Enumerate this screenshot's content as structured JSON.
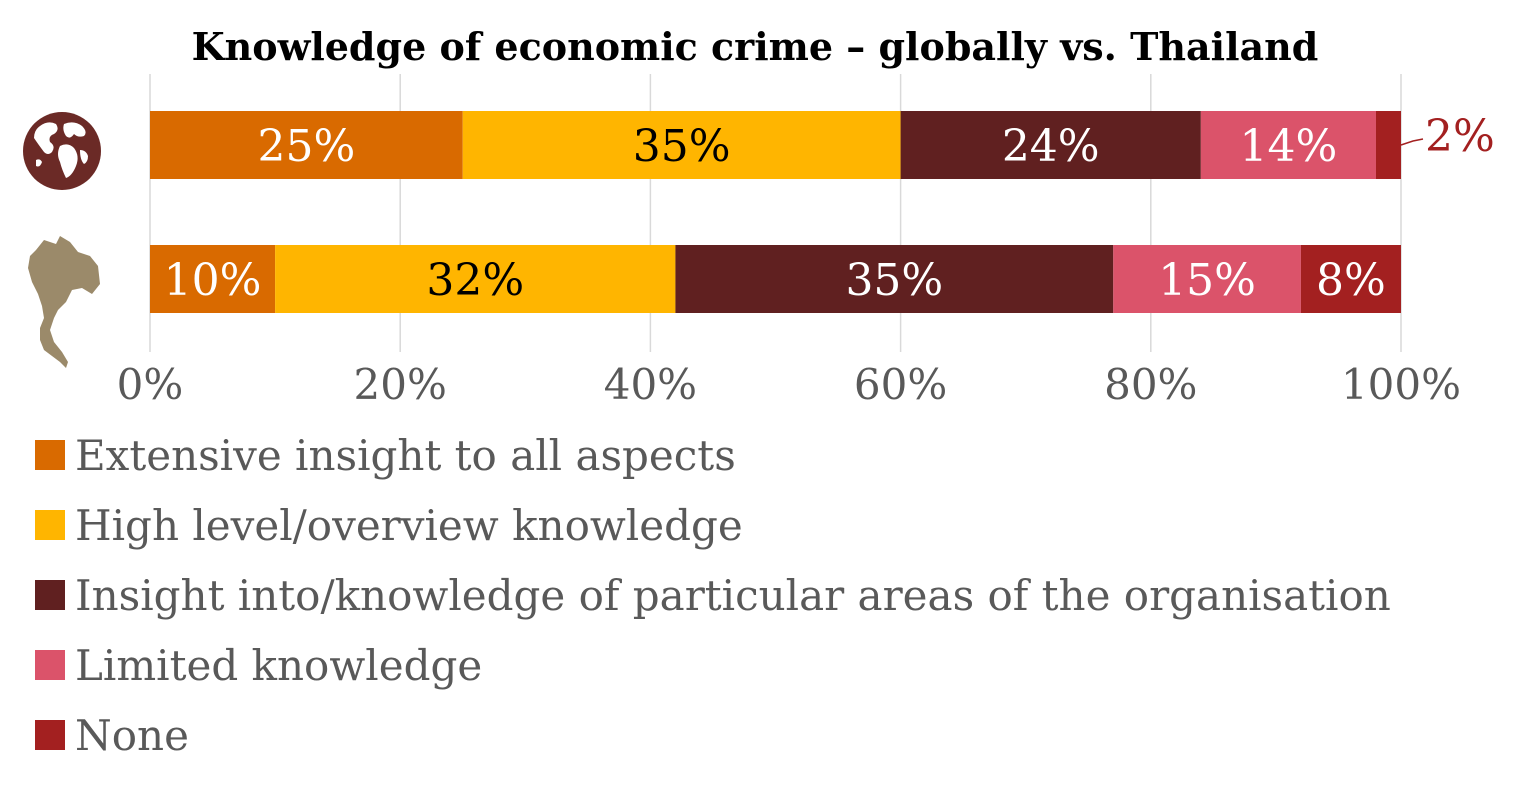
{
  "chart_data": {
    "type": "bar",
    "orientation": "horizontal",
    "stacked": true,
    "title": "Knowledge of economic crime – globally vs. Thailand",
    "rows": [
      {
        "icon": "globe-icon",
        "values": [
          25,
          35,
          24,
          14,
          2
        ]
      },
      {
        "icon": "thailand-map-icon",
        "values": [
          10,
          32,
          35,
          15,
          8
        ]
      }
    ],
    "series": [
      {
        "name": "Extensive insight to all aspects",
        "color": "#D96A00",
        "label_color": "#FFFFFF"
      },
      {
        "name": "High level/overview knowledge",
        "color": "#FFB500",
        "label_color": "#000000"
      },
      {
        "name": "Insight into/knowledge of particular areas of the organisation",
        "color": "#602020",
        "label_color": "#FFFFFF"
      },
      {
        "name": "Limited knowledge",
        "color": "#DB536A",
        "label_color": "#FFFFFF"
      },
      {
        "name": "None",
        "color": "#A32020",
        "label_color": "#FFFFFF"
      }
    ],
    "value_suffix": "%",
    "xlim": [
      0,
      100
    ],
    "xticks": [
      "0%",
      "20%",
      "40%",
      "60%",
      "80%",
      "100%"
    ],
    "grid": true,
    "legend": "bottom-left"
  },
  "colors": {
    "globe": "#6B2A26",
    "thailand": "#9B8A6A",
    "grid": "#D9D9D9",
    "outside_label": "#A32020"
  }
}
